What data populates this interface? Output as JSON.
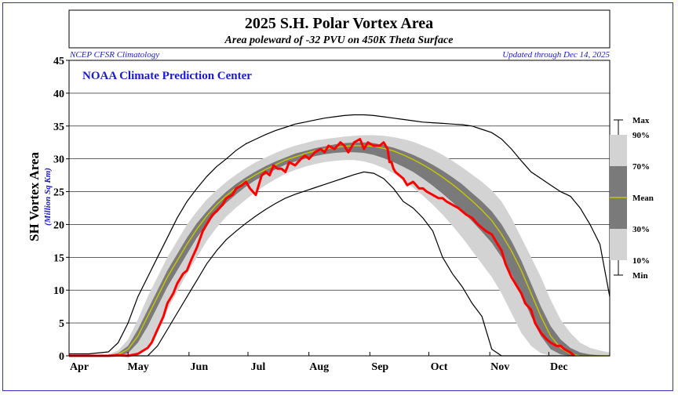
{
  "chart_data": {
    "type": "line",
    "title": "2025 S.H. Polar Vortex Area",
    "subtitle": "Area poleward of -32 PVU on 450K Theta Surface",
    "source_left": "NCEP CFSR Climatology",
    "source_right": "Updated through Dec 14, 2025",
    "annotation": "NOAA Climate Prediction Center",
    "ylabel": "SH Vortex Area",
    "ylabel_units": "(Million Sq Km)",
    "ylim": [
      0,
      45
    ],
    "yticks": [
      0,
      5,
      10,
      15,
      20,
      25,
      30,
      35,
      40,
      45
    ],
    "xlim": [
      0,
      275
    ],
    "xlabel_unit": "days since Apr 1",
    "xticks": [
      {
        "label": "Apr",
        "day": 0
      },
      {
        "label": "May",
        "day": 30
      },
      {
        "label": "Jun",
        "day": 61
      },
      {
        "label": "Jul",
        "day": 91
      },
      {
        "label": "Aug",
        "day": 122
      },
      {
        "label": "Sep",
        "day": 153
      },
      {
        "label": "Oct",
        "day": 183
      },
      {
        "label": "Nov",
        "day": 214
      },
      {
        "label": "Dec",
        "day": 244
      }
    ],
    "grid": true,
    "legend": {
      "labels": [
        "Max",
        "90%",
        "70%",
        "Mean",
        "30%",
        "10%",
        "Min"
      ],
      "placement": "right"
    },
    "climatology": {
      "x": [
        0,
        10,
        20,
        25,
        30,
        35,
        40,
        45,
        50,
        55,
        60,
        65,
        70,
        75,
        80,
        85,
        90,
        95,
        100,
        105,
        110,
        115,
        120,
        125,
        130,
        135,
        140,
        145,
        150,
        155,
        160,
        165,
        170,
        175,
        180,
        185,
        190,
        195,
        200,
        205,
        210,
        215,
        220,
        225,
        230,
        235,
        240,
        245,
        250,
        255,
        260,
        265,
        270,
        275
      ],
      "max": [
        0.3,
        0.3,
        0.6,
        2,
        5,
        9,
        12,
        15,
        18,
        21,
        23.5,
        25.5,
        27.3,
        28.8,
        30,
        31.3,
        32.3,
        33,
        33.7,
        34.3,
        34.8,
        35.3,
        35.6,
        35.9,
        36.2,
        36.4,
        36.6,
        36.7,
        36.7,
        36.6,
        36.4,
        36.2,
        36,
        35.8,
        35.6,
        35.5,
        35.4,
        35.3,
        35.2,
        35,
        34.5,
        34,
        33,
        31.5,
        29.7,
        28,
        27,
        26,
        25,
        24.3,
        22.5,
        20,
        17,
        9
      ],
      "p90": [
        0,
        0,
        0.2,
        0.8,
        2.5,
        5.5,
        9,
        12,
        15,
        17.5,
        20,
        22,
        23.8,
        25.2,
        26.5,
        27.6,
        28.6,
        29.5,
        30.2,
        30.9,
        31.5,
        32,
        32.4,
        32.8,
        33,
        33.2,
        33.4,
        33.5,
        33.6,
        33.6,
        33.5,
        33.3,
        33,
        32.6,
        32,
        31.4,
        30.6,
        29.7,
        28.7,
        27.6,
        26.5,
        25.2,
        23.5,
        21,
        18,
        15,
        12,
        8.5,
        5.5,
        3.5,
        2,
        1.2,
        0.8,
        0.5
      ],
      "p70": [
        0,
        0,
        0.1,
        0.4,
        1.5,
        4,
        7,
        10,
        13,
        15.5,
        18,
        20.2,
        22,
        23.6,
        25,
        26.2,
        27.2,
        28.1,
        28.9,
        29.6,
        30.2,
        30.8,
        31.2,
        31.6,
        31.9,
        32.2,
        32.4,
        32.5,
        32.5,
        32.4,
        32.1,
        31.7,
        31.2,
        30.6,
        29.9,
        29.1,
        28.2,
        27.2,
        26.1,
        24.8,
        23.5,
        22,
        20,
        17.5,
        14.5,
        11,
        7.5,
        4.5,
        2.5,
        1.2,
        0.5,
        0.2,
        0.1,
        0
      ],
      "mean": [
        0,
        0,
        0,
        0.2,
        1,
        3,
        6,
        9,
        12,
        14.5,
        17,
        19.3,
        21.3,
        23,
        24.4,
        25.6,
        26.7,
        27.6,
        28.4,
        29.1,
        29.8,
        30.3,
        30.8,
        31.2,
        31.5,
        31.7,
        31.9,
        32,
        32,
        31.9,
        31.6,
        31.2,
        30.6,
        29.9,
        29.1,
        28.2,
        27.2,
        26.1,
        24.9,
        23.6,
        22.2,
        20.6,
        18.5,
        16,
        13,
        9.5,
        6,
        3,
        1.2,
        0.3,
        0,
        0,
        0,
        0
      ],
      "p30": [
        0,
        0,
        0,
        0,
        0.4,
        2,
        4.5,
        7.5,
        10.5,
        13,
        15.5,
        18,
        20,
        21.8,
        23.3,
        24.6,
        25.8,
        26.8,
        27.6,
        28.4,
        29.1,
        29.6,
        30,
        30.4,
        30.7,
        30.9,
        31,
        31,
        30.9,
        30.6,
        30.1,
        29.5,
        28.8,
        28,
        27,
        25.9,
        24.7,
        23.4,
        22,
        20.5,
        18.9,
        17.2,
        15,
        12.5,
        9.5,
        6,
        3,
        1,
        0.2,
        0,
        0,
        0,
        0,
        0
      ],
      "p10": [
        0,
        0,
        0,
        0,
        0,
        0.3,
        1.5,
        4,
        7,
        9.8,
        12.5,
        15,
        17.5,
        19.5,
        21.2,
        22.6,
        23.8,
        25,
        26,
        26.9,
        27.7,
        28.3,
        28.8,
        29.2,
        29.5,
        29.7,
        29.8,
        29.8,
        29.6,
        29.2,
        28.6,
        27.8,
        26.8,
        25.6,
        24.4,
        23,
        21.5,
        19.8,
        18,
        16,
        14,
        12,
        9.5,
        6.5,
        3.5,
        1.5,
        0.4,
        0,
        0,
        0,
        0,
        0,
        0,
        0
      ],
      "min": [
        0,
        0,
        0,
        0,
        0,
        0,
        0,
        1.5,
        4,
        6.5,
        9,
        11.5,
        14,
        16,
        17.7,
        19,
        20.2,
        21.3,
        22.3,
        23.2,
        24,
        24.6,
        25.1,
        25.6,
        26.1,
        26.6,
        27.1,
        27.6,
        28,
        27.8,
        27,
        25.5,
        23.5,
        22.5,
        21,
        19,
        15,
        12.5,
        10.5,
        8,
        6,
        1,
        0,
        0,
        0,
        0,
        0,
        0,
        0,
        0,
        0,
        0,
        0,
        0
      ]
    },
    "series_2025": {
      "name": "2025",
      "x": [
        0,
        10,
        20,
        25,
        30,
        35,
        40,
        42,
        45,
        48,
        50,
        53,
        55,
        58,
        60,
        62,
        65,
        68,
        70,
        73,
        75,
        78,
        80,
        83,
        85,
        88,
        90,
        92,
        95,
        98,
        100,
        102,
        104,
        106,
        108,
        110,
        112,
        115,
        118,
        120,
        122,
        125,
        128,
        130,
        132,
        135,
        138,
        140,
        142,
        145,
        148,
        150,
        152,
        155,
        158,
        160,
        162,
        163,
        164,
        165,
        166,
        168,
        170,
        172,
        175,
        178,
        180,
        182,
        185,
        188,
        190,
        192,
        195,
        198,
        200,
        202,
        205,
        208,
        210,
        212,
        215,
        218,
        220,
        222,
        225,
        228,
        230,
        232,
        235,
        237,
        240,
        243,
        245,
        248,
        250,
        252,
        255,
        257
      ],
      "y": [
        0,
        0,
        0,
        0.1,
        0,
        0.3,
        1.2,
        2,
        4,
        6,
        8,
        9.5,
        11,
        12.5,
        13,
        14.5,
        16.5,
        19,
        20,
        21.5,
        22,
        23,
        24,
        24.5,
        25.5,
        26,
        26.5,
        25.5,
        24.5,
        27.5,
        28,
        27.5,
        29,
        28.5,
        28.5,
        28,
        29.5,
        29,
        30,
        30.5,
        30,
        31,
        31.5,
        31,
        32,
        31.5,
        32.5,
        32,
        31,
        32.5,
        33,
        31.5,
        32.5,
        32,
        32,
        32.5,
        31.5,
        29.5,
        29.5,
        28.5,
        28,
        27.5,
        27,
        26,
        26.5,
        25.5,
        25.5,
        25,
        24.5,
        24,
        24,
        23.5,
        23,
        22.5,
        22,
        21.5,
        21,
        20,
        19.5,
        19,
        18.5,
        17,
        16,
        14,
        12,
        10.5,
        9.5,
        8,
        7,
        5,
        3.5,
        2.5,
        2,
        1.5,
        1.5,
        1,
        0.5,
        0
      ]
    }
  }
}
